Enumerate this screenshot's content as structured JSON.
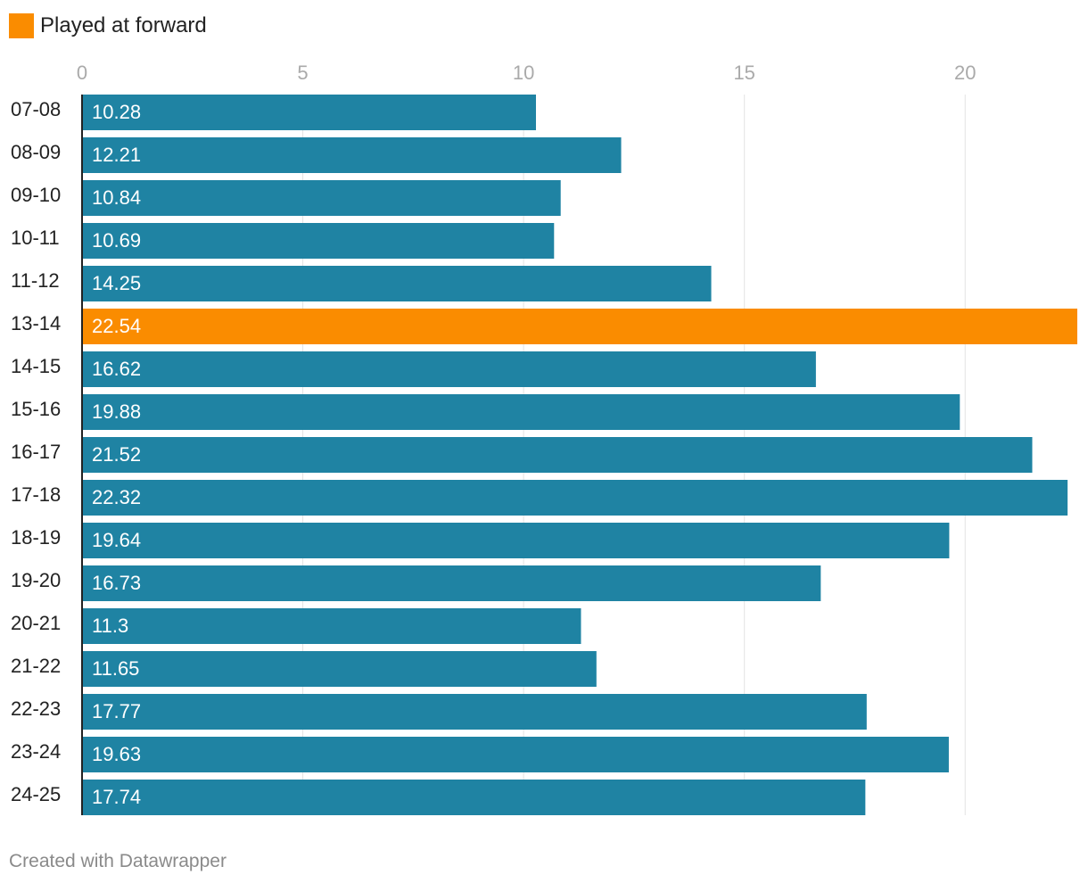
{
  "chart_data": {
    "type": "bar",
    "orientation": "horizontal",
    "legend": [
      {
        "label": "Played at forward",
        "color": "#fa8c00"
      }
    ],
    "categories": [
      "07-08",
      "08-09",
      "09-10",
      "10-11",
      "11-12",
      "13-14",
      "14-15",
      "15-16",
      "16-17",
      "17-18",
      "18-19",
      "19-20",
      "20-21",
      "21-22",
      "22-23",
      "23-24",
      "24-25"
    ],
    "values": [
      10.28,
      12.21,
      10.84,
      10.69,
      14.25,
      22.54,
      16.62,
      19.88,
      21.52,
      22.32,
      19.64,
      16.73,
      11.3,
      11.65,
      17.77,
      19.63,
      17.74
    ],
    "value_labels": [
      "10.28",
      "12.21",
      "10.84",
      "10.69",
      "14.25",
      "22.54",
      "16.62",
      "19.88",
      "21.52",
      "22.32",
      "19.64",
      "16.73",
      "11.3",
      "11.65",
      "17.77",
      "19.63",
      "17.74"
    ],
    "highlighted": [
      "13-14"
    ],
    "x_ticks": [
      0,
      5,
      10,
      15,
      20
    ],
    "xlim": [
      0,
      22.54
    ],
    "grid": true,
    "colors": {
      "default": "#1f83a3",
      "highlight": "#fa8c00",
      "grid": "#e3e3e3",
      "axis": "#222222"
    },
    "legend_position": "top-left"
  },
  "footer": {
    "credit": "Created with Datawrapper"
  }
}
